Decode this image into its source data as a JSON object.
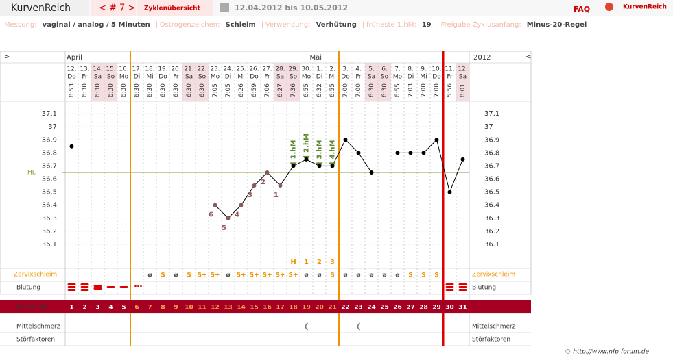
{
  "header": {
    "logo": "KurvenReich",
    "cycle_nav": "< # 7 >",
    "overview": "Zyklenübersicht",
    "date_range": "12.04.2012 bis 10.05.2012",
    "faq": "FAQ",
    "brand": "KurvenReich"
  },
  "info": [
    {
      "label": "Messung:",
      "value": "vaginal / analog / 5 Minuten"
    },
    {
      "label": "Östrogenzeichen:",
      "value": "Schleim"
    },
    {
      "label": "Verwendung:",
      "value": "Verhütung"
    },
    {
      "label": "früheste 1.hM:",
      "value": "19"
    },
    {
      "label": "Freigabe Zyklusanfang:",
      "value": "Minus-20-Regel"
    }
  ],
  "chart_data": {
    "type": "line",
    "nav_left": ">",
    "nav_right": "<",
    "months": [
      "April",
      "Mai"
    ],
    "year": "2012",
    "categories": [
      "12.",
      "13.",
      "14.",
      "15.",
      "16.",
      "17.",
      "18.",
      "19.",
      "20.",
      "21.",
      "22.",
      "23.",
      "24.",
      "25.",
      "26.",
      "27.",
      "28.",
      "29.",
      "30.",
      "1.",
      "2.",
      "3.",
      "4.",
      "5.",
      "6.",
      "7.",
      "8.",
      "9.",
      "10.",
      "11.",
      "12."
    ],
    "weekdays": [
      "Do",
      "Fr",
      "Sa",
      "So",
      "Mo",
      "Di",
      "Mi",
      "Do",
      "Fr",
      "Sa",
      "So",
      "Mo",
      "Di",
      "Mi",
      "Do",
      "Fr",
      "Sa",
      "So",
      "Mo",
      "Di",
      "Mi",
      "Do",
      "Fr",
      "Sa",
      "So",
      "Mo",
      "Di",
      "Mi",
      "Do",
      "Fr",
      "Sa"
    ],
    "times": [
      "8:53",
      "6:30",
      "6:30",
      "6:30",
      "6:30",
      "6:30",
      "6:30",
      "6:30",
      "6:30",
      "6:30",
      "6:30",
      "7:05",
      "7:05",
      "6:26",
      "6:59",
      "7:06",
      "6:27",
      "7:36",
      "6:55",
      "6:32",
      "6:55",
      "7:00",
      "7:00",
      "6:30",
      "6:30",
      "6:55",
      "7:03",
      "7:00",
      "7:00",
      "5:56",
      "8:01"
    ],
    "values": [
      36.85,
      null,
      null,
      null,
      null,
      null,
      null,
      null,
      null,
      null,
      null,
      36.4,
      36.3,
      36.4,
      36.55,
      36.65,
      36.55,
      36.7,
      36.75,
      36.7,
      36.7,
      36.9,
      36.8,
      36.65,
      null,
      36.8,
      36.8,
      36.8,
      36.9,
      36.5,
      36.75
    ],
    "color": "#000000",
    "point_labels": [
      null,
      null,
      null,
      null,
      null,
      null,
      null,
      null,
      null,
      null,
      null,
      "6",
      "5",
      "4",
      "3",
      "2",
      "1",
      "1.hM",
      "2.hM",
      "3.hM",
      "4.hM",
      null,
      null,
      null,
      null,
      null,
      null,
      null,
      null,
      null,
      null
    ],
    "ylim": [
      36.0,
      37.2
    ],
    "yticks": [
      36.1,
      36.2,
      36.3,
      36.4,
      36.5,
      36.6,
      36.7,
      36.8,
      36.9,
      37,
      37.1
    ],
    "hl_label": "HL",
    "hl_value": 36.65,
    "mucus_label": "Zervixschleim",
    "mucus": [
      null,
      null,
      null,
      null,
      null,
      null,
      "ø",
      "S",
      "ø",
      "S",
      "S+",
      "S+",
      "ø",
      "S+",
      "S+",
      "S+",
      "S+",
      "S+",
      "ø",
      "ø",
      "S",
      "ø",
      "ø",
      "ø",
      "ø",
      "ø",
      "S",
      "S",
      "S",
      null,
      null
    ],
    "peak_labels": [
      null,
      null,
      null,
      null,
      null,
      null,
      null,
      null,
      null,
      null,
      null,
      null,
      null,
      null,
      null,
      null,
      null,
      "H",
      "1",
      "2",
      "3",
      null,
      null,
      null,
      null,
      null,
      null,
      null,
      null,
      null,
      null
    ],
    "bleeding_label": "Blutung",
    "cycle_day_label": "Zyklustag",
    "cycle_days": [
      1,
      2,
      3,
      4,
      5,
      6,
      7,
      8,
      9,
      10,
      11,
      12,
      13,
      14,
      15,
      16,
      17,
      18,
      19,
      20,
      21,
      22,
      23,
      24,
      25,
      26,
      27,
      28,
      29,
      30,
      31
    ],
    "pain_label": "Mittelschmerz",
    "disturbance_label": "Störfaktoren"
  },
  "footer": "© http://www.nfp-forum.de"
}
